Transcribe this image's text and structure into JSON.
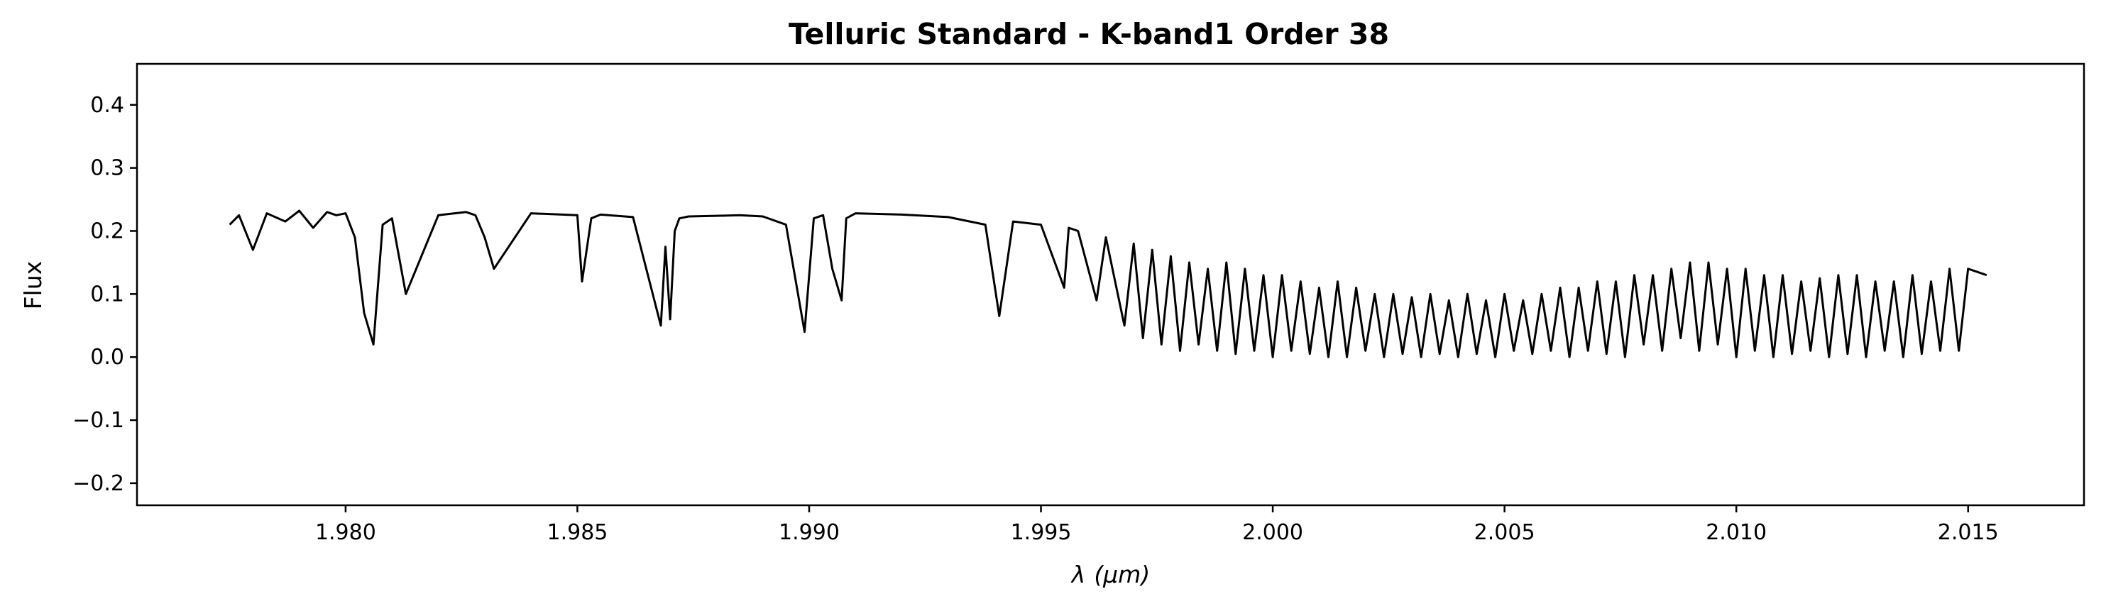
{
  "chart_data": {
    "type": "line",
    "title": "Telluric Standard - K-band1 Order 38",
    "xlabel_symbol": "λ",
    "xlabel_unit": "(μm)",
    "ylabel": "Flux",
    "xlim": [
      1.9755,
      2.0175
    ],
    "ylim": [
      -0.235,
      0.465
    ],
    "xticks": [
      1.98,
      1.985,
      1.99,
      1.995,
      2.0,
      2.005,
      2.01,
      2.015
    ],
    "xtick_labels": [
      "1.980",
      "1.985",
      "1.990",
      "1.995",
      "2.000",
      "2.005",
      "2.010",
      "2.015"
    ],
    "yticks": [
      -0.2,
      -0.1,
      0.0,
      0.1,
      0.2,
      0.3,
      0.4
    ],
    "ytick_labels": [
      "−0.2",
      "−0.1",
      "0.0",
      "0.1",
      "0.2",
      "0.3",
      "0.4"
    ],
    "grid": false,
    "line_color": "#000000",
    "series": [
      {
        "x": [
          1.9775,
          1.9777,
          1.978,
          1.9783,
          1.9787,
          1.979,
          1.9793,
          1.9796,
          1.9798,
          1.98,
          1.9802,
          1.9804,
          1.9806,
          1.9808,
          1.981,
          1.9813,
          1.982,
          1.9826,
          1.9828,
          1.983,
          1.9832,
          1.984,
          1.985,
          1.9851,
          1.9853,
          1.9855,
          1.9862,
          1.9868,
          1.9869,
          1.987,
          1.9871,
          1.9872,
          1.9874,
          1.988,
          1.9885,
          1.989,
          1.9895,
          1.9899,
          1.9901,
          1.9903,
          1.9905,
          1.9907,
          1.9908,
          1.991,
          1.992,
          1.993,
          1.9938,
          1.9941,
          1.9944,
          1.995,
          1.9955,
          1.9956,
          1.9958,
          1.9962,
          1.9964,
          1.9966,
          1.9968,
          1.997,
          1.9972,
          1.9974,
          1.9976,
          1.9978,
          1.998,
          1.9982,
          1.9984,
          1.9986,
          1.9988,
          1.999,
          1.9992,
          1.9994,
          1.9996,
          1.9998,
          2.0,
          2.0002,
          2.0004,
          2.0006,
          2.0008,
          2.001,
          2.0012,
          2.0014,
          2.0016,
          2.0018,
          2.002,
          2.0022,
          2.0024,
          2.0026,
          2.0028,
          2.003,
          2.0032,
          2.0034,
          2.0036,
          2.0038,
          2.004,
          2.0042,
          2.0044,
          2.0046,
          2.0048,
          2.005,
          2.0052,
          2.0054,
          2.0056,
          2.0058,
          2.006,
          2.0062,
          2.0064,
          2.0066,
          2.0068,
          2.007,
          2.0072,
          2.0074,
          2.0076,
          2.0078,
          2.008,
          2.0082,
          2.0084,
          2.0086,
          2.0088,
          2.009,
          2.0092,
          2.0094,
          2.0096,
          2.0098,
          2.01,
          2.0102,
          2.0104,
          2.0106,
          2.0108,
          2.011,
          2.0112,
          2.0114,
          2.0116,
          2.0118,
          2.012,
          2.0122,
          2.0124,
          2.0126,
          2.0128,
          2.013,
          2.0132,
          2.0134,
          2.0136,
          2.0138,
          2.014,
          2.0142,
          2.0144,
          2.0146,
          2.0148,
          2.015,
          2.0152,
          2.0154
        ],
        "values": [
          0.21,
          0.225,
          0.17,
          0.228,
          0.215,
          0.232,
          0.205,
          0.23,
          0.225,
          0.228,
          0.19,
          0.07,
          0.02,
          0.21,
          0.22,
          0.1,
          0.225,
          0.23,
          0.225,
          0.19,
          0.14,
          0.228,
          0.225,
          0.12,
          0.22,
          0.226,
          0.222,
          0.05,
          0.175,
          0.06,
          0.2,
          0.22,
          0.223,
          0.224,
          0.225,
          0.223,
          0.21,
          0.04,
          0.22,
          0.225,
          0.14,
          0.09,
          0.22,
          0.228,
          0.226,
          0.222,
          0.21,
          0.065,
          0.215,
          0.21,
          0.11,
          0.205,
          0.2,
          0.09,
          0.19,
          0.12,
          0.05,
          0.18,
          0.03,
          0.17,
          0.02,
          0.16,
          0.01,
          0.15,
          0.02,
          0.14,
          0.01,
          0.15,
          0.005,
          0.14,
          0.01,
          0.13,
          0.0,
          0.13,
          0.01,
          0.12,
          0.005,
          0.11,
          0.0,
          0.12,
          0.0,
          0.11,
          0.01,
          0.1,
          0.0,
          0.1,
          0.005,
          0.095,
          0.0,
          0.1,
          0.005,
          0.09,
          0.0,
          0.1,
          0.005,
          0.09,
          0.0,
          0.1,
          0.01,
          0.09,
          0.005,
          0.1,
          0.01,
          0.11,
          0.0,
          0.11,
          0.01,
          0.12,
          0.005,
          0.12,
          0.0,
          0.13,
          0.02,
          0.13,
          0.01,
          0.14,
          0.03,
          0.15,
          0.01,
          0.15,
          0.02,
          0.14,
          0.0,
          0.14,
          0.01,
          0.13,
          0.0,
          0.13,
          0.005,
          0.12,
          0.01,
          0.125,
          0.0,
          0.13,
          0.005,
          0.13,
          0.0,
          0.12,
          0.01,
          0.12,
          0.0,
          0.13,
          0.005,
          0.12,
          0.01,
          0.14,
          0.01,
          0.14,
          0.135,
          0.13
        ]
      }
    ]
  }
}
